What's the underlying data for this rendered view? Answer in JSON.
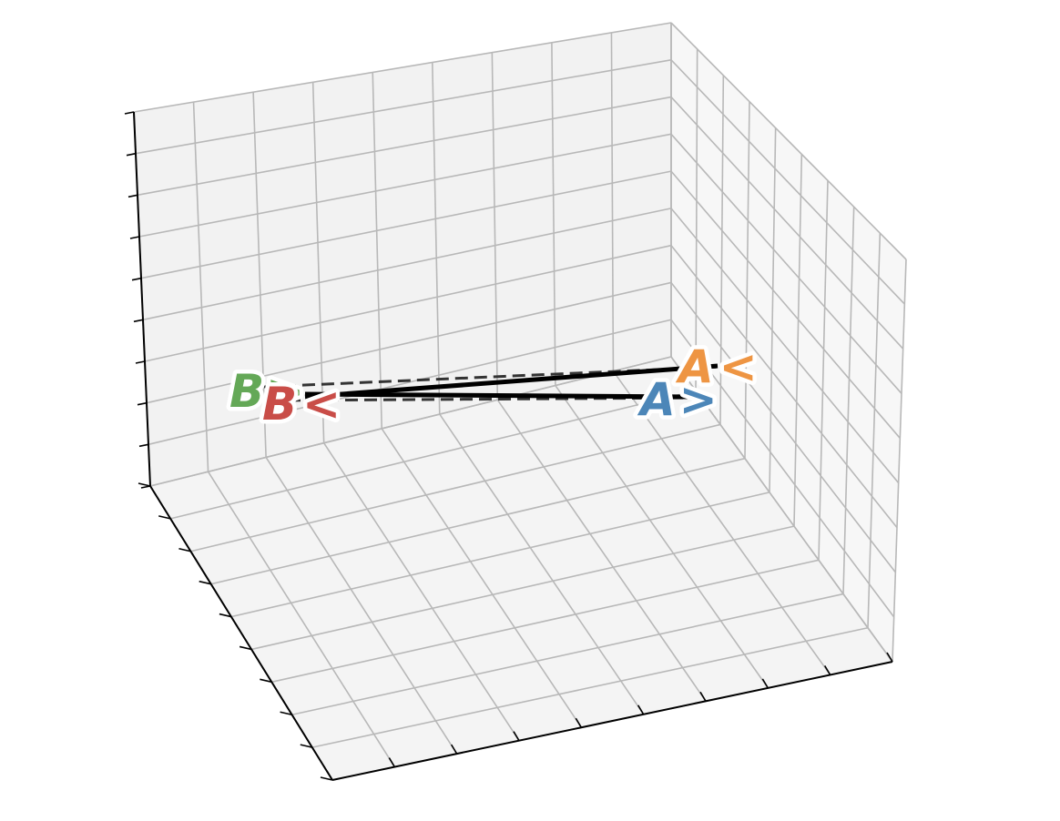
{
  "colors": {
    "back_pane": "#f2f2f2",
    "side_pane": "#f7f7f7",
    "floor_pane": "#f4f4f4",
    "grid": "#b8b8b8",
    "axis": "#000000",
    "connector": "#000000",
    "connector_dashed": "#333333",
    "label_blue": "#4c86b8",
    "label_orange": "#ee9543",
    "label_green": "#64a857",
    "label_red": "#c94d48"
  },
  "labels": {
    "green": {
      "letter": "B",
      "symbol": ">"
    },
    "red": {
      "letter": "B",
      "symbol": "<"
    },
    "orange": {
      "letter": "A",
      "symbol": "<"
    },
    "blue": {
      "letter": "A",
      "symbol": ">"
    }
  }
}
